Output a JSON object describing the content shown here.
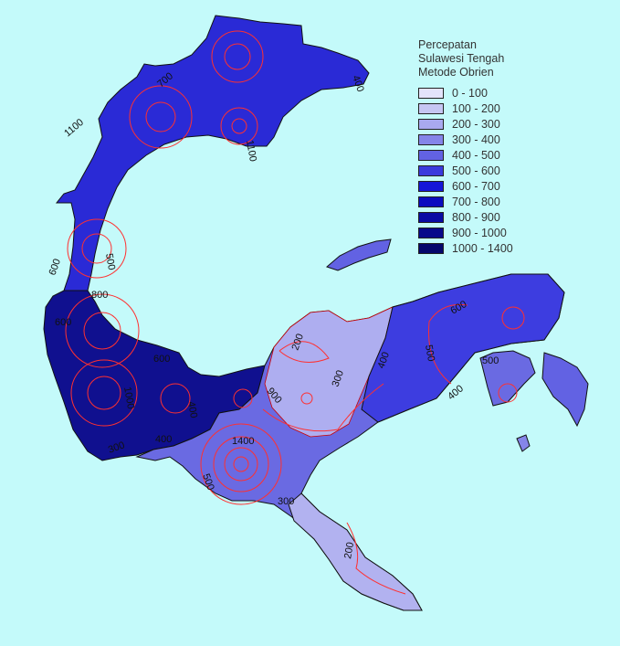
{
  "legend": {
    "title_lines": [
      "Percepatan",
      "Sulawesi Tengah",
      "Metode Obrien"
    ],
    "classes": [
      {
        "label": "0 - 100",
        "color": "#e3e3fb"
      },
      {
        "label": "100 - 200",
        "color": "#c6c6f3"
      },
      {
        "label": "200 - 300",
        "color": "#a9a9ef"
      },
      {
        "label": "300 - 400",
        "color": "#8585e9"
      },
      {
        "label": "400 - 500",
        "color": "#6262e3"
      },
      {
        "label": "500 - 600",
        "color": "#3a3add"
      },
      {
        "label": "600 - 700",
        "color": "#1616d8"
      },
      {
        "label": "700 - 800",
        "color": "#0b0bbf"
      },
      {
        "label": "800 - 900",
        "color": "#0a0aa3"
      },
      {
        "label": "900 - 1000",
        "color": "#08088a"
      },
      {
        "label": "1000 - 1400",
        "color": "#06066b"
      }
    ]
  },
  "contour_labels": [
    "400",
    "700",
    "1100",
    "1100",
    "600",
    "500",
    "800",
    "600",
    "600",
    "400",
    "900",
    "200",
    "300",
    "400",
    "600",
    "500",
    "500",
    "400",
    "300",
    "400",
    "500",
    "1000",
    "300",
    "200",
    "1400"
  ]
}
